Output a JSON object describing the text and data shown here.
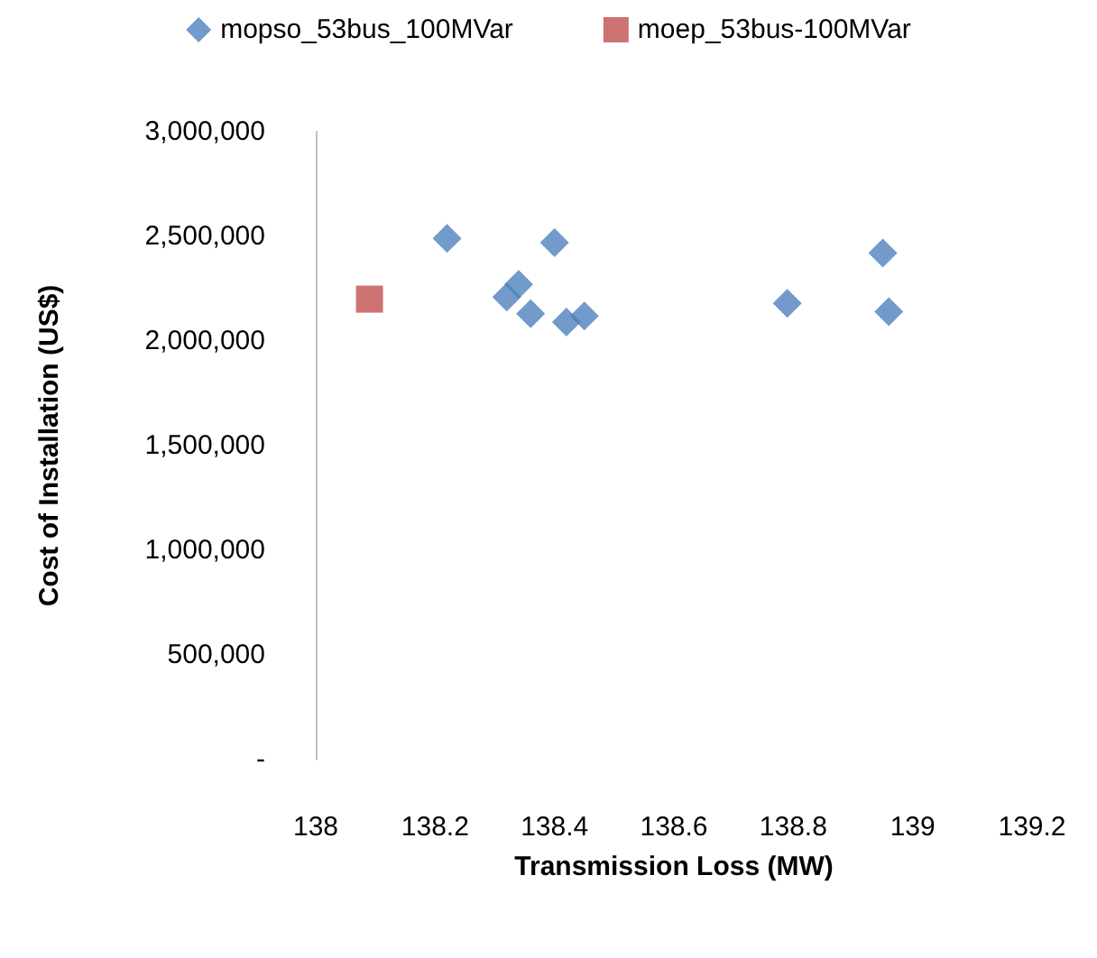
{
  "chart_data": {
    "type": "scatter",
    "xlabel": "Transmission Loss (MW)",
    "ylabel": "Cost of Installation (US$)",
    "series": [
      {
        "name": "mopso_53bus_100MVar",
        "color": "#4f81bd",
        "marker": "diamond",
        "x": [
          138.22,
          138.4,
          138.95,
          138.34,
          138.32,
          138.36,
          138.42,
          138.45,
          138.79,
          138.96
        ],
        "values": [
          2490000,
          2470000,
          2420000,
          2270000,
          2210000,
          2130000,
          2090000,
          2120000,
          2180000,
          2140000
        ]
      },
      {
        "name": "moep_53bus-100MVar",
        "color": "#c0504d",
        "marker": "square",
        "x": [
          138.09
        ],
        "values": [
          2200000
        ]
      }
    ],
    "xlim": [
      138,
      139.2
    ],
    "xticks": [
      138,
      138.2,
      138.4,
      138.6,
      138.8,
      139,
      139.2
    ],
    "ylim": [
      0,
      3000000
    ],
    "yticks": [
      {
        "value": 0,
        "label": "-"
      },
      {
        "value": 500000,
        "label": "500,000"
      },
      {
        "value": 1000000,
        "label": "1,000,000"
      },
      {
        "value": 1500000,
        "label": "1,500,000"
      },
      {
        "value": 2000000,
        "label": "2,000,000"
      },
      {
        "value": 2500000,
        "label": "2,500,000"
      },
      {
        "value": 3000000,
        "label": "3,000,000"
      }
    ],
    "grid": false,
    "legend": "top"
  }
}
